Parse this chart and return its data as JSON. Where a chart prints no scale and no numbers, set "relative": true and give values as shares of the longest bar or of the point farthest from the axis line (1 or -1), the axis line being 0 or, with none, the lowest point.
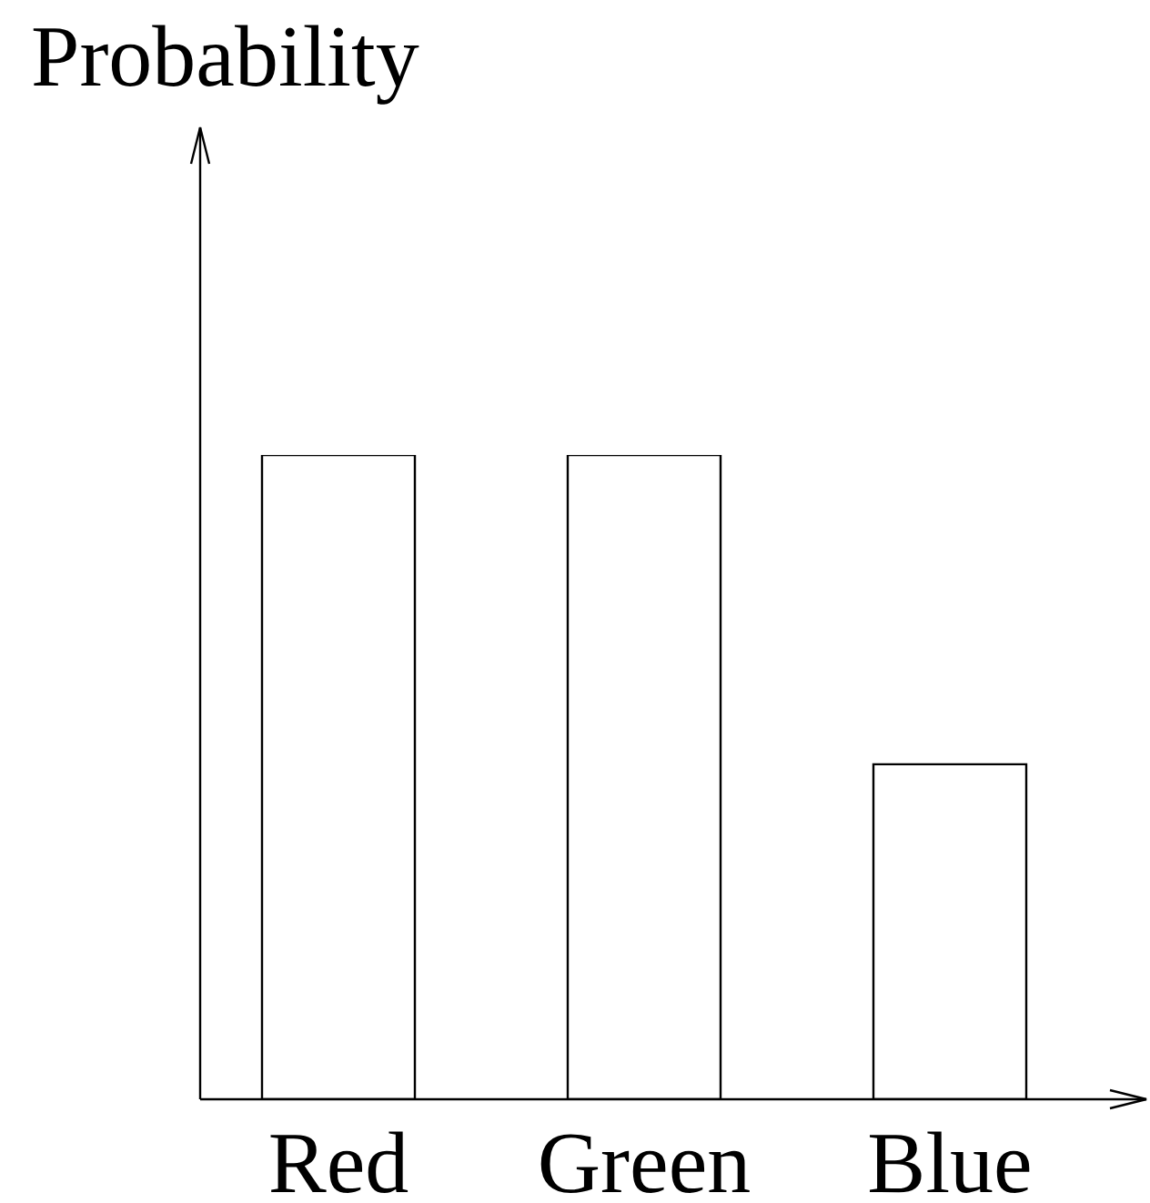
{
  "chart_data": {
    "type": "bar",
    "ylabel": "Probability",
    "categories": [
      "Red",
      "Green",
      "Blue"
    ],
    "values": [
      1,
      1,
      0.52
    ],
    "color": "#ffffff",
    "relative": true
  }
}
